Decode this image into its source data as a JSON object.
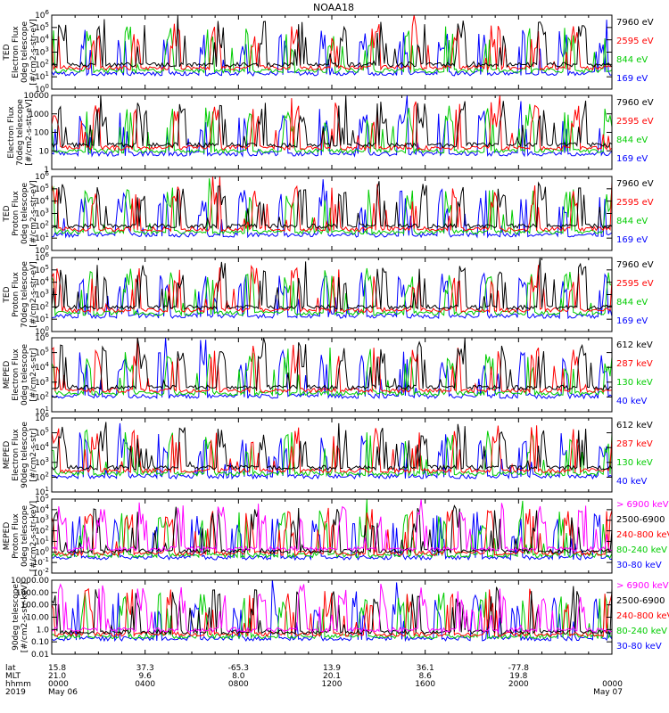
{
  "title": "NOAA18",
  "chart_data": {
    "type": "line",
    "title": "NOAA18",
    "x_axis": {
      "rows": [
        {
          "label": "lat",
          "values": [
            "15.8",
            "37.3",
            "-65.3",
            "13.9",
            "36.1",
            "-77.8"
          ]
        },
        {
          "label": "MLT",
          "values": [
            "21.0",
            "9.6",
            "8.0",
            "20.1",
            "8.6",
            "19.8"
          ]
        },
        {
          "label": "hhmm",
          "values": [
            "0000",
            "0400",
            "0800",
            "1200",
            "1600",
            "2000",
            "0000"
          ]
        },
        {
          "label": "2019",
          "values": [
            "May 06",
            "",
            "",
            "",
            "",
            "",
            "May 07"
          ]
        }
      ],
      "range_hours": [
        0,
        24
      ]
    },
    "panels": [
      {
        "ylabel": [
          "TED",
          "Electron Flux",
          "0deg telescope",
          "[#/cm2-s-str-eV]"
        ],
        "scale": "log",
        "ylim": [
          1,
          1000000
        ],
        "ticks": [
          [
            "10^0",
            0
          ],
          [
            "10^1",
            1
          ],
          [
            "10^2",
            2
          ],
          [
            "10^3",
            3
          ],
          [
            "10^4",
            4
          ],
          [
            "10^5",
            5
          ],
          [
            "10^6",
            6
          ]
        ],
        "series": [
          {
            "name": "7960 eV",
            "color": "#000000"
          },
          {
            "name": "2595 eV",
            "color": "#ff0000"
          },
          {
            "name": "844 eV",
            "color": "#00cc00"
          },
          {
            "name": "169 eV",
            "color": "#0000ff"
          }
        ]
      },
      {
        "ylabel": [
          "Electron Flux",
          "70deg telescope",
          "[#/cm2-s-str-eV]"
        ],
        "scale": "log",
        "ylim": [
          1,
          10000
        ],
        "ticks": [
          [
            "1",
            0
          ],
          [
            "10",
            1
          ],
          [
            "100",
            2
          ],
          [
            "1000",
            3
          ],
          [
            "10000",
            4
          ]
        ],
        "series": [
          {
            "name": "7960 eV",
            "color": "#000000"
          },
          {
            "name": "2595 eV",
            "color": "#ff0000"
          },
          {
            "name": "844 eV",
            "color": "#00cc00"
          },
          {
            "name": "169 eV",
            "color": "#0000ff"
          }
        ]
      },
      {
        "ylabel": [
          "TED",
          "Proton Flux",
          "0deg telescope",
          "[#/cm2-s-str-eV]"
        ],
        "scale": "log",
        "ylim": [
          1,
          1000000
        ],
        "ticks": [
          [
            "10^0",
            0
          ],
          [
            "10^1",
            1
          ],
          [
            "10^2",
            2
          ],
          [
            "10^3",
            3
          ],
          [
            "10^4",
            4
          ],
          [
            "10^5",
            5
          ],
          [
            "10^6",
            6
          ]
        ],
        "series": [
          {
            "name": "7960 eV",
            "color": "#000000"
          },
          {
            "name": "2595 eV",
            "color": "#ff0000"
          },
          {
            "name": "844 eV",
            "color": "#00cc00"
          },
          {
            "name": "169 eV",
            "color": "#0000ff"
          }
        ]
      },
      {
        "ylabel": [
          "TED",
          "Proton Flux",
          "70deg telescope",
          "[#/cm2-s-str-eV]"
        ],
        "scale": "log",
        "ylim": [
          1,
          1000000
        ],
        "ticks": [
          [
            "10^0",
            0
          ],
          [
            "10^1",
            1
          ],
          [
            "10^2",
            2
          ],
          [
            "10^3",
            3
          ],
          [
            "10^4",
            4
          ],
          [
            "10^5",
            5
          ],
          [
            "10^6",
            6
          ]
        ],
        "series": [
          {
            "name": "7960 eV",
            "color": "#000000"
          },
          {
            "name": "2595 eV",
            "color": "#ff0000"
          },
          {
            "name": "844 eV",
            "color": "#00cc00"
          },
          {
            "name": "169 eV",
            "color": "#0000ff"
          }
        ]
      },
      {
        "ylabel": [
          "MEPED",
          "Electron Flux",
          "0deg telescope",
          "[#/cm2-s-str]"
        ],
        "scale": "log",
        "ylim": [
          10,
          1000000
        ],
        "ticks": [
          [
            "10^1",
            1
          ],
          [
            "10^2",
            2
          ],
          [
            "10^3",
            3
          ],
          [
            "10^4",
            4
          ],
          [
            "10^5",
            5
          ],
          [
            "10^6",
            6
          ]
        ],
        "series": [
          {
            "name": "612 keV",
            "color": "#000000"
          },
          {
            "name": "287 keV",
            "color": "#ff0000"
          },
          {
            "name": "130 keV",
            "color": "#00cc00"
          },
          {
            "name": "40 keV",
            "color": "#0000ff"
          }
        ]
      },
      {
        "ylabel": [
          "MEPED",
          "Electron Flux",
          "90deg telescope",
          "[#/cm2-s-str]"
        ],
        "scale": "log",
        "ylim": [
          10,
          1000000
        ],
        "ticks": [
          [
            "10^1",
            1
          ],
          [
            "10^2",
            2
          ],
          [
            "10^3",
            3
          ],
          [
            "10^4",
            4
          ],
          [
            "10^5",
            5
          ],
          [
            "10^6",
            6
          ]
        ],
        "series": [
          {
            "name": "612 keV",
            "color": "#000000"
          },
          {
            "name": "287 keV",
            "color": "#ff0000"
          },
          {
            "name": "130 keV",
            "color": "#00cc00"
          },
          {
            "name": "40 keV",
            "color": "#0000ff"
          }
        ]
      },
      {
        "ylabel": [
          "MEPED",
          "Proton Flux",
          "0deg telescope",
          "[#/cm2-s-str-keV]"
        ],
        "scale": "log",
        "ylim": [
          0.01,
          100000
        ],
        "ticks": [
          [
            "10^-2",
            -2
          ],
          [
            "10^-1",
            -1
          ],
          [
            "10^0",
            0
          ],
          [
            "10^1",
            1
          ],
          [
            "10^2",
            2
          ],
          [
            "10^3",
            3
          ],
          [
            "10^4",
            4
          ],
          [
            "10^5",
            5
          ]
        ],
        "series": [
          {
            "name": "> 6900 keV",
            "color": "#ff00ff"
          },
          {
            "name": "2500-6900",
            "color": "#000000"
          },
          {
            "name": "240-800 keV",
            "color": "#ff0000"
          },
          {
            "name": "80-240 keV",
            "color": "#00cc00"
          },
          {
            "name": "30-80 keV",
            "color": "#0000ff"
          }
        ]
      },
      {
        "ylabel": [
          "90deg telescope",
          "[#/cm2-s-str-keV]"
        ],
        "scale": "log",
        "ylim": [
          0.01,
          10000
        ],
        "ticks": [
          [
            "0.01",
            -2
          ],
          [
            "0.10",
            -1
          ],
          [
            "1.0",
            0
          ],
          [
            "10.00",
            1
          ],
          [
            "100.00",
            2
          ],
          [
            "1000.00",
            3
          ],
          [
            "10000.00",
            4
          ]
        ],
        "series": [
          {
            "name": "> 6900 keV",
            "color": "#ff00ff"
          },
          {
            "name": "2500-6900",
            "color": "#000000"
          },
          {
            "name": "240-800 keV",
            "color": "#ff0000"
          },
          {
            "name": "80-240 keV",
            "color": "#00cc00"
          },
          {
            "name": "30-80 keV",
            "color": "#0000ff"
          }
        ]
      }
    ]
  }
}
